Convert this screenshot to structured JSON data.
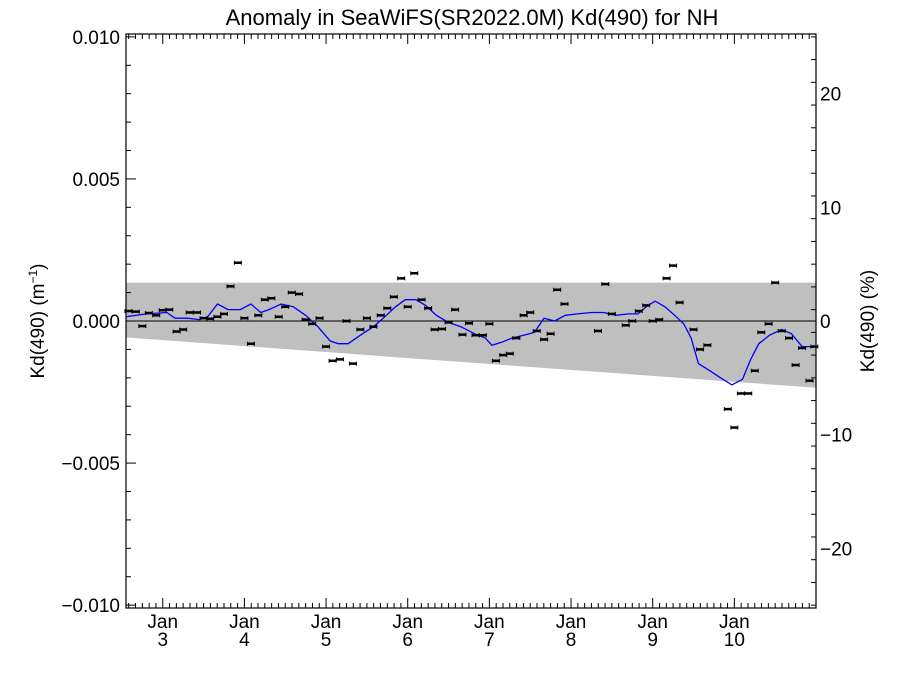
{
  "chart_data": {
    "type": "scatter",
    "title": "Anomaly in SeaWiFS(SR2022.0M) Kd(490) for NH",
    "ylabel_left": {
      "text": "Kd(490) (m",
      "sup": "−1",
      "close": ")"
    },
    "ylabel_right": "Kd(490) (%)",
    "x_units": "months since start (Jan 3 = 0)",
    "xlim": [
      -0.45,
      8.0
    ],
    "ylim": [
      -0.0101,
      0.0101
    ],
    "right_ylim": [
      -25.25,
      25.25
    ],
    "x_ticks": [
      {
        "x": 0,
        "month": "Jan",
        "year": "3"
      },
      {
        "x": 1,
        "month": "Jan",
        "year": "4"
      },
      {
        "x": 2,
        "month": "Jan",
        "year": "5"
      },
      {
        "x": 3,
        "month": "Jan",
        "year": "6"
      },
      {
        "x": 4,
        "month": "Jan",
        "year": "7"
      },
      {
        "x": 5,
        "month": "Jan",
        "year": "8"
      },
      {
        "x": 6,
        "month": "Jan",
        "year": "9"
      },
      {
        "x": 7,
        "month": "Jan",
        "year": "10"
      }
    ],
    "y_ticks_left": [
      {
        "v": 0.01,
        "label": "0.010"
      },
      {
        "v": 0.005,
        "label": "0.005"
      },
      {
        "v": 0.0,
        "label": "0.000"
      },
      {
        "v": -0.005,
        "label": "−0.005"
      },
      {
        "v": -0.01,
        "label": "−0.010"
      }
    ],
    "y_ticks_right": [
      {
        "v": 20,
        "label": "20"
      },
      {
        "v": 10,
        "label": "10"
      },
      {
        "v": 0,
        "label": "0"
      },
      {
        "v": -10,
        "label": "−10"
      },
      {
        "v": -20,
        "label": "−20"
      }
    ],
    "band": {
      "upper": [
        [
          -0.45,
          0.00135
        ],
        [
          8.0,
          0.00135
        ]
      ],
      "lower": [
        [
          -0.45,
          -0.00058
        ],
        [
          8.0,
          -0.00235
        ]
      ]
    },
    "zero_line": 0,
    "colors": {
      "band": "#bfbfbf",
      "line": "#0000ff",
      "points": "#000000",
      "axes": "#000000"
    },
    "points": [
      [
        -0.42,
        0.00035
      ],
      [
        -0.33,
        0.00033
      ],
      [
        -0.25,
        -0.00018
      ],
      [
        -0.17,
        0.00028
      ],
      [
        -0.08,
        0.0002
      ],
      [
        0.0,
        0.00038
      ],
      [
        0.08,
        0.0004
      ],
      [
        0.17,
        -0.00037
      ],
      [
        0.25,
        -0.0003
      ],
      [
        0.33,
        0.0003
      ],
      [
        0.42,
        0.0003
      ],
      [
        0.5,
        0.0001
      ],
      [
        0.58,
        8e-05
      ],
      [
        0.67,
        0.00015
      ],
      [
        0.75,
        0.00025
      ],
      [
        0.83,
        0.00122
      ],
      [
        0.92,
        0.00205
      ],
      [
        1.0,
        0.0001
      ],
      [
        1.08,
        -0.0008
      ],
      [
        1.17,
        0.0002
      ],
      [
        1.25,
        0.00075
      ],
      [
        1.33,
        0.0008
      ],
      [
        1.42,
        0.00015
      ],
      [
        1.5,
        0.0005
      ],
      [
        1.58,
        0.001
      ],
      [
        1.67,
        0.00095
      ],
      [
        1.75,
        5e-05
      ],
      [
        1.83,
        -0.0001
      ],
      [
        1.92,
        0.0001
      ],
      [
        2.0,
        -0.0009
      ],
      [
        2.08,
        -0.0014
      ],
      [
        2.17,
        -0.00135
      ],
      [
        2.25,
        0.0
      ],
      [
        2.33,
        -0.0015
      ],
      [
        2.42,
        -0.0003
      ],
      [
        2.5,
        0.0001
      ],
      [
        2.58,
        -0.0002
      ],
      [
        2.67,
        0.0002
      ],
      [
        2.75,
        0.00045
      ],
      [
        2.83,
        0.00085
      ],
      [
        2.92,
        0.0015
      ],
      [
        3.0,
        0.0005
      ],
      [
        3.08,
        0.00168
      ],
      [
        3.17,
        0.00075
      ],
      [
        3.25,
        0.00045
      ],
      [
        3.33,
        -0.0003
      ],
      [
        3.42,
        -0.00028
      ],
      [
        3.5,
        -5e-05
      ],
      [
        3.58,
        0.0004
      ],
      [
        3.67,
        -0.00048
      ],
      [
        3.75,
        -8e-05
      ],
      [
        3.83,
        -0.0005
      ],
      [
        3.92,
        -0.0005
      ],
      [
        4.0,
        -0.0001
      ],
      [
        4.08,
        -0.0014
      ],
      [
        4.17,
        -0.0012
      ],
      [
        4.25,
        -0.00115
      ],
      [
        4.33,
        -0.0006
      ],
      [
        4.42,
        0.0002
      ],
      [
        4.5,
        0.0003
      ],
      [
        4.58,
        -0.00035
      ],
      [
        4.67,
        -0.00065
      ],
      [
        4.75,
        -0.00045
      ],
      [
        4.83,
        0.0011
      ],
      [
        4.92,
        0.0006
      ],
      [
        5.33,
        -0.00035
      ],
      [
        5.42,
        0.0013
      ],
      [
        5.5,
        0.00025
      ],
      [
        5.67,
        -0.00015
      ],
      [
        5.75,
        0.0
      ],
      [
        5.83,
        0.00035
      ],
      [
        5.92,
        0.00055
      ],
      [
        6.0,
        0.0
      ],
      [
        6.08,
        5e-05
      ],
      [
        6.17,
        0.0015
      ],
      [
        6.25,
        0.00195
      ],
      [
        6.33,
        0.00065
      ],
      [
        6.5,
        -0.0003
      ],
      [
        6.58,
        -0.001
      ],
      [
        6.67,
        -0.00085
      ],
      [
        6.92,
        -0.0031
      ],
      [
        7.0,
        -0.00375
      ],
      [
        7.08,
        -0.00255
      ],
      [
        7.17,
        -0.00255
      ],
      [
        7.25,
        -0.00175
      ],
      [
        7.33,
        -0.0004
      ],
      [
        7.42,
        -0.0001
      ],
      [
        7.5,
        0.00135
      ],
      [
        7.58,
        -0.00035
      ],
      [
        7.67,
        -0.0006
      ],
      [
        7.75,
        -0.00155
      ],
      [
        7.83,
        -0.00095
      ],
      [
        7.92,
        -0.0021
      ],
      [
        7.98,
        -0.0009
      ]
    ],
    "smooth_line": [
      [
        -0.45,
        0.00015
      ],
      [
        -0.2,
        0.00025
      ],
      [
        0.05,
        0.0003
      ],
      [
        0.15,
        0.0001
      ],
      [
        0.3,
        0.0001
      ],
      [
        0.45,
        5e-05
      ],
      [
        0.55,
        0.00015
      ],
      [
        0.67,
        0.0006
      ],
      [
        0.8,
        0.0004
      ],
      [
        0.95,
        0.0004
      ],
      [
        1.08,
        0.0006
      ],
      [
        1.2,
        0.0003
      ],
      [
        1.3,
        0.0004
      ],
      [
        1.45,
        0.0006
      ],
      [
        1.6,
        0.0005
      ],
      [
        1.75,
        0.0002
      ],
      [
        1.9,
        -0.0002
      ],
      [
        2.05,
        -0.0007
      ],
      [
        2.15,
        -0.0008
      ],
      [
        2.27,
        -0.0008
      ],
      [
        2.42,
        -0.0005
      ],
      [
        2.58,
        -0.0002
      ],
      [
        2.72,
        0.00015
      ],
      [
        2.85,
        0.0005
      ],
      [
        2.97,
        0.00075
      ],
      [
        3.1,
        0.00075
      ],
      [
        3.22,
        0.00055
      ],
      [
        3.35,
        0.0002
      ],
      [
        3.5,
        -5e-05
      ],
      [
        3.65,
        -0.0002
      ],
      [
        3.82,
        -0.00045
      ],
      [
        3.95,
        -0.0006
      ],
      [
        4.03,
        -0.00085
      ],
      [
        4.15,
        -0.00075
      ],
      [
        4.28,
        -0.0006
      ],
      [
        4.42,
        -0.0005
      ],
      [
        4.55,
        -0.0004
      ],
      [
        4.67,
        0.0001
      ],
      [
        4.8,
        0.0
      ],
      [
        4.93,
        0.0002
      ],
      [
        5.08,
        0.00025
      ],
      [
        5.25,
        0.0003
      ],
      [
        5.4,
        0.0003
      ],
      [
        5.55,
        0.0002
      ],
      [
        5.7,
        0.00025
      ],
      [
        5.82,
        0.00025
      ],
      [
        5.92,
        0.0005
      ],
      [
        6.03,
        0.0007
      ],
      [
        6.15,
        0.0005
      ],
      [
        6.27,
        0.0002
      ],
      [
        6.38,
        -0.0001
      ],
      [
        6.47,
        -0.0006
      ],
      [
        6.56,
        -0.0015
      ],
      [
        6.7,
        -0.00175
      ],
      [
        6.83,
        -0.002
      ],
      [
        6.97,
        -0.00225
      ],
      [
        7.1,
        -0.00205
      ],
      [
        7.2,
        -0.00135
      ],
      [
        7.3,
        -0.0008
      ],
      [
        7.43,
        -0.0005
      ],
      [
        7.58,
        -0.0003
      ],
      [
        7.7,
        -0.00045
      ],
      [
        7.83,
        -0.0009
      ],
      [
        8.0,
        -0.0009
      ]
    ]
  }
}
